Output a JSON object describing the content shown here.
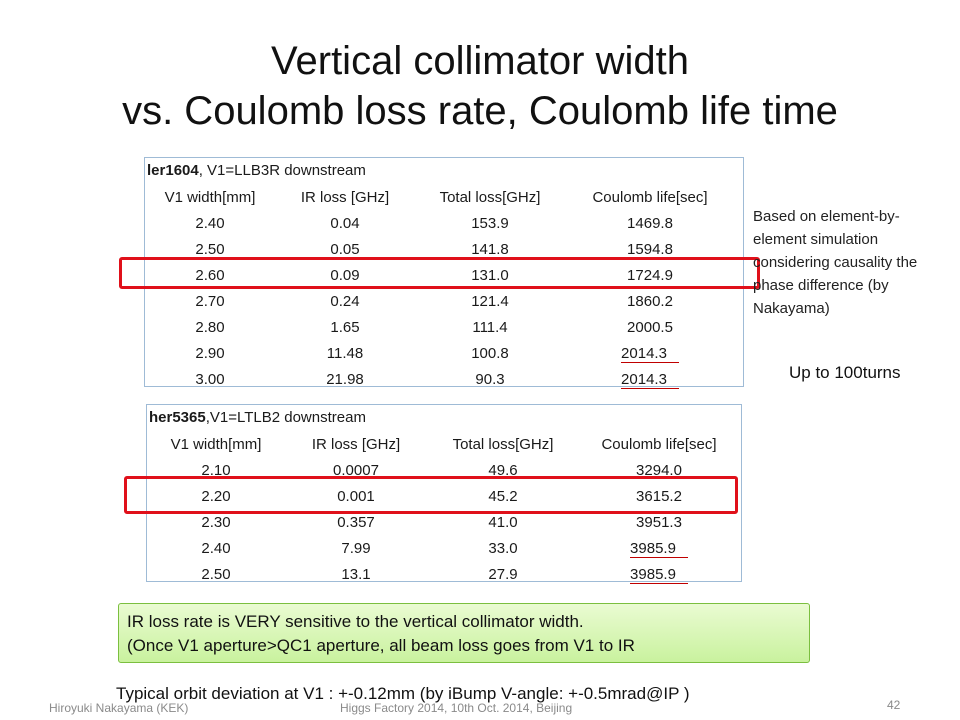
{
  "slide": {
    "title_line1": "Vertical collimator width",
    "title_line2": "vs. Coulomb loss rate, Coulomb life time",
    "table1": {
      "caption_bold": "ler1604",
      "caption_rest": ", V1=LLB3R downstream",
      "headers": [
        "V1 width[mm]",
        "IR loss [GHz]",
        "Total loss[GHz]",
        "Coulomb life[sec]"
      ],
      "rows": [
        [
          "2.40",
          "0.04",
          "153.9",
          "1469.8"
        ],
        [
          "2.50",
          "0.05",
          "141.8",
          "1594.8"
        ],
        [
          "2.60",
          "0.09",
          "131.0",
          "1724.9"
        ],
        [
          "2.70",
          "0.24",
          "121.4",
          "1860.2"
        ],
        [
          "2.80",
          "1.65",
          "111.4",
          "2000.5"
        ],
        [
          "2.90",
          "11.48",
          "100.8",
          "2014.3"
        ],
        [
          "3.00",
          "21.98",
          "90.3",
          "2014.3"
        ]
      ]
    },
    "table2": {
      "caption_bold": "her5365",
      "caption_rest": ",V1=LTLB2 downstream",
      "headers": [
        "V1 width[mm]",
        "IR loss [GHz]",
        "Total loss[GHz]",
        "Coulomb life[sec]"
      ],
      "rows": [
        [
          "2.10",
          "0.0007",
          "49.6",
          "3294.0"
        ],
        [
          "2.20",
          "0.001",
          "45.2",
          "3615.2"
        ],
        [
          "2.30",
          "0.357",
          "41.0",
          "3951.3"
        ],
        [
          "2.40",
          "7.99",
          "33.0",
          "3985.9"
        ],
        [
          "2.50",
          "13.1",
          "27.9",
          "3985.9"
        ]
      ]
    },
    "side_note": "Based on element-by-element simulation considering causality the phase difference (by Nakayama)",
    "up_to": "Up to 100turns",
    "callout_line1": "IR loss rate is VERY sensitive to the vertical  collimator width.",
    "callout_line2": "(Once V1 aperture>QC1 aperture, all beam loss goes from V1 to IR",
    "orbit_note": "Typical orbit deviation at V1 : +-0.12mm (by iBump V-angle: +-0.5mrad@IP )",
    "footer_author": "Hiroyuki Nakayama (KEK)",
    "footer_event": "Higgs Factory 2014, 10th Oct. 2014, Beijing",
    "page_number": "42",
    "highlight_color": "#e0101a",
    "callout_color": "#c9f29e"
  }
}
